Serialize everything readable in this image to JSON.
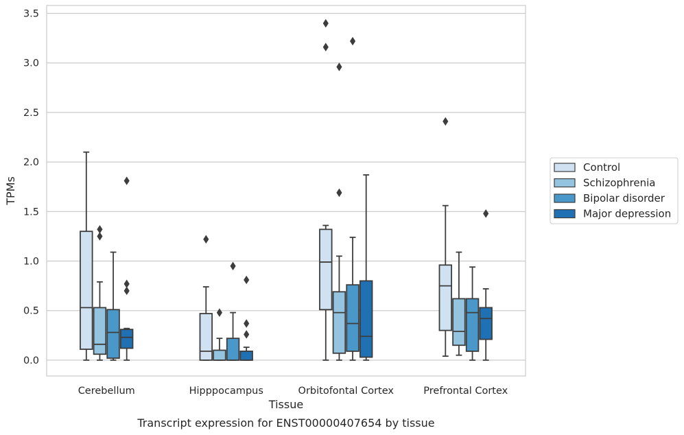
{
  "caption": "Transcript expression for ENST00000407654 by tissue",
  "chart_data": {
    "type": "box",
    "xlabel": "Tissue",
    "ylabel": "TPMs",
    "ylim": [
      -0.16,
      3.58
    ],
    "yticks": [
      "0.0",
      "0.5",
      "1.0",
      "1.5",
      "2.0",
      "2.5",
      "3.0",
      "3.5"
    ],
    "grid": "horizontal",
    "legend_placement": "right",
    "categories": [
      "Cerebellum",
      "Hipppocampus",
      "Orbitofontal Cortex",
      "Prefrontal Cortex"
    ],
    "series": [
      {
        "name": "Control",
        "color": "#d0e1f2",
        "boxes": [
          {
            "whisker_low": 0.0,
            "q1": 0.11,
            "median": 0.53,
            "q3": 1.3,
            "whisker_high": 2.1,
            "outliers": []
          },
          {
            "whisker_low": 0.0,
            "q1": 0.0,
            "median": 0.09,
            "q3": 0.47,
            "whisker_high": 0.74,
            "outliers": [
              1.22
            ]
          },
          {
            "whisker_low": 0.0,
            "q1": 0.51,
            "median": 0.99,
            "q3": 1.32,
            "whisker_high": 1.36,
            "outliers": [
              3.4,
              3.16
            ]
          },
          {
            "whisker_low": 0.04,
            "q1": 0.3,
            "median": 0.75,
            "q3": 0.96,
            "whisker_high": 1.56,
            "outliers": [
              2.41
            ]
          }
        ]
      },
      {
        "name": "Schizophrenia",
        "color": "#94c4df",
        "boxes": [
          {
            "whisker_low": 0.0,
            "q1": 0.06,
            "median": 0.16,
            "q3": 0.53,
            "whisker_high": 0.79,
            "outliers": [
              1.32,
              1.25
            ]
          },
          {
            "whisker_low": 0.0,
            "q1": 0.0,
            "median": 0.0,
            "q3": 0.1,
            "whisker_high": 0.22,
            "outliers": [
              0.48
            ]
          },
          {
            "whisker_low": 0.0,
            "q1": 0.07,
            "median": 0.48,
            "q3": 0.69,
            "whisker_high": 1.05,
            "outliers": [
              2.96,
              1.69
            ]
          },
          {
            "whisker_low": 0.05,
            "q1": 0.15,
            "median": 0.29,
            "q3": 0.62,
            "whisker_high": 1.09,
            "outliers": []
          }
        ]
      },
      {
        "name": "Bipolar disorder",
        "color": "#4a98c9",
        "boxes": [
          {
            "whisker_low": 0.0,
            "q1": 0.02,
            "median": 0.28,
            "q3": 0.51,
            "whisker_high": 1.09,
            "outliers": []
          },
          {
            "whisker_low": 0.0,
            "q1": 0.0,
            "median": 0.0,
            "q3": 0.22,
            "whisker_high": 0.48,
            "outliers": [
              0.95
            ]
          },
          {
            "whisker_low": 0.0,
            "q1": 0.09,
            "median": 0.37,
            "q3": 0.76,
            "whisker_high": 1.24,
            "outliers": [
              3.22
            ]
          },
          {
            "whisker_low": 0.0,
            "q1": 0.09,
            "median": 0.48,
            "q3": 0.62,
            "whisker_high": 0.94,
            "outliers": []
          }
        ]
      },
      {
        "name": "Major depression",
        "color": "#2070b4",
        "boxes": [
          {
            "whisker_low": 0.0,
            "q1": 0.12,
            "median": 0.23,
            "q3": 0.31,
            "whisker_high": 0.32,
            "outliers": [
              1.81,
              0.77,
              0.7
            ]
          },
          {
            "whisker_low": 0.0,
            "q1": 0.0,
            "median": 0.0,
            "q3": 0.09,
            "whisker_high": 0.13,
            "outliers": [
              0.81,
              0.37,
              0.26
            ]
          },
          {
            "whisker_low": 0.0,
            "q1": 0.03,
            "median": 0.24,
            "q3": 0.8,
            "whisker_high": 1.87,
            "outliers": []
          },
          {
            "whisker_low": 0.0,
            "q1": 0.21,
            "median": 0.42,
            "q3": 0.53,
            "whisker_high": 0.72,
            "outliers": [
              1.48
            ]
          }
        ]
      }
    ]
  }
}
